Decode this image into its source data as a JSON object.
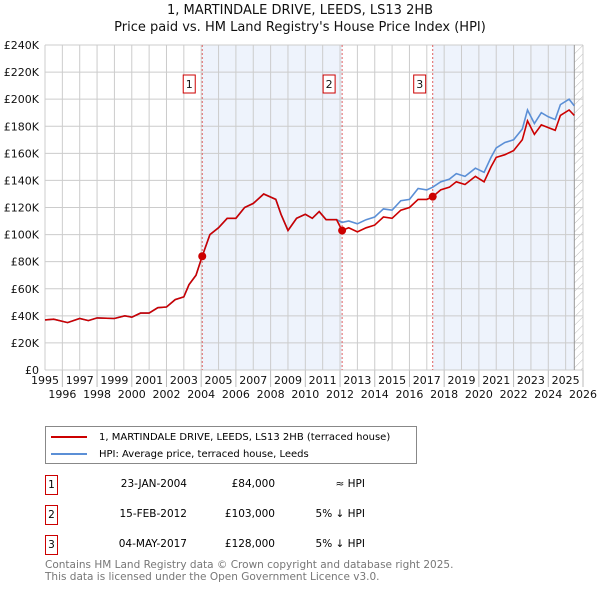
{
  "chart_data": {
    "type": "line",
    "title": "1, MARTINDALE DRIVE, LEEDS, LS13 2HB",
    "subtitle": "Price paid vs. HM Land Registry's House Price Index (HPI)",
    "xlim": [
      1995,
      2026
    ],
    "ylim": [
      0,
      240000
    ],
    "x_ticks": [
      "1995",
      "1996",
      "1997",
      "1998",
      "1999",
      "2000",
      "2001",
      "2002",
      "2003",
      "2004",
      "2005",
      "2006",
      "2007",
      "2008",
      "2009",
      "2010",
      "2011",
      "2012",
      "2013",
      "2014",
      "2015",
      "2016",
      "2017",
      "2018",
      "2019",
      "2020",
      "2021",
      "2022",
      "2023",
      "2024",
      "2025",
      "2026"
    ],
    "y_ticks": [
      "£0",
      "£20K",
      "£40K",
      "£60K",
      "£80K",
      "£100K",
      "£120K",
      "£140K",
      "£160K",
      "£180K",
      "£200K",
      "£220K",
      "£240K"
    ],
    "grid": true,
    "series": [
      {
        "name": "1, MARTINDALE DRIVE, LEEDS, LS13 2HB (terraced house)",
        "color": "#cc0000",
        "x": [
          1995,
          1995.5,
          1996.3,
          1997,
          1997.5,
          1998,
          1999,
          1999.6,
          2000,
          2000.5,
          2001,
          2001.5,
          2002,
          2002.5,
          2003,
          2003.3,
          2003.7,
          2004.06,
          2004.5,
          2005,
          2005.5,
          2006,
          2006.5,
          2007,
          2007.6,
          2008.3,
          2008.6,
          2009,
          2009.5,
          2010,
          2010.4,
          2010.8,
          2011.2,
          2011.8,
          2012.12,
          2012.5,
          2013,
          2013.5,
          2014,
          2014.5,
          2015,
          2015.5,
          2016,
          2016.5,
          2017,
          2017.34,
          2017.8,
          2018.3,
          2018.7,
          2019.2,
          2019.8,
          2020.3,
          2020.7,
          2021,
          2021.5,
          2022,
          2022.5,
          2022.8,
          2023.2,
          2023.6,
          2024,
          2024.4,
          2024.7,
          2025.2,
          2025.5
        ],
        "y": [
          37000,
          37500,
          35000,
          38000,
          36500,
          38500,
          38000,
          40000,
          39000,
          42000,
          42000,
          46000,
          46500,
          52000,
          54000,
          63000,
          70000,
          84000,
          100000,
          105000,
          112000,
          112000,
          120000,
          123000,
          130000,
          126000,
          115000,
          103000,
          112000,
          115000,
          112000,
          117000,
          111000,
          111000,
          103000,
          105000,
          102000,
          105000,
          107000,
          113000,
          112000,
          118000,
          120000,
          126000,
          126000,
          128000,
          133000,
          135000,
          139000,
          137000,
          143000,
          139000,
          150000,
          157000,
          159000,
          162000,
          170000,
          184000,
          174000,
          181000,
          179000,
          177000,
          188000,
          192000,
          188000
        ]
      },
      {
        "name": "HPI: Average price, terraced house, Leeds",
        "color": "#5b8fd6",
        "x": [
          1995,
          1995.5,
          1996.3,
          1997,
          1997.5,
          1998,
          1999,
          1999.6,
          2000,
          2000.5,
          2001,
          2001.5,
          2002,
          2002.5,
          2003,
          2003.3,
          2003.7,
          2004.06,
          2004.5,
          2005,
          2005.5,
          2006,
          2006.5,
          2007,
          2007.6,
          2008.3,
          2008.6,
          2009,
          2009.5,
          2010,
          2010.4,
          2010.8,
          2011.2,
          2011.8,
          2012.12,
          2012.5,
          2013,
          2013.5,
          2014,
          2014.5,
          2015,
          2015.5,
          2016,
          2016.5,
          2017,
          2017.34,
          2017.8,
          2018.3,
          2018.7,
          2019.2,
          2019.8,
          2020.3,
          2020.7,
          2021,
          2021.5,
          2022,
          2022.5,
          2022.8,
          2023.2,
          2023.6,
          2024,
          2024.4,
          2024.7,
          2025.2,
          2025.5
        ],
        "y": [
          37000,
          37500,
          35000,
          38000,
          36500,
          38500,
          38000,
          40000,
          39000,
          42000,
          42000,
          46000,
          46500,
          52000,
          54000,
          63000,
          70000,
          84000,
          100000,
          105000,
          112000,
          112000,
          120000,
          123000,
          130000,
          126000,
          115000,
          103000,
          112000,
          115000,
          112000,
          117000,
          111000,
          111000,
          109000,
          110000,
          108000,
          111000,
          113000,
          119000,
          118000,
          125000,
          126000,
          134000,
          133000,
          135000,
          139000,
          141000,
          145000,
          143000,
          149000,
          146000,
          157000,
          164000,
          168000,
          170000,
          178000,
          192000,
          182000,
          190000,
          187000,
          185000,
          196000,
          200000,
          195000
        ]
      }
    ],
    "sales": [
      {
        "label": "1",
        "x": 2004.06,
        "y": 84000,
        "date": "23-JAN-2004",
        "price": "£84,000",
        "hpi": "≈ HPI"
      },
      {
        "label": "2",
        "x": 2012.12,
        "y": 103000,
        "date": "15-FEB-2012",
        "price": "£103,000",
        "hpi": "5% ↓ HPI"
      },
      {
        "label": "3",
        "x": 2017.34,
        "y": 128000,
        "date": "04-MAY-2017",
        "price": "£128,000",
        "hpi": "5% ↓ HPI"
      }
    ],
    "shaded_ranges": [
      [
        2004.06,
        2012.12
      ],
      [
        2017.34,
        2025.5
      ]
    ],
    "hatched_from": 2025.5
  },
  "legend": {
    "red": "1, MARTINDALE DRIVE, LEEDS, LS13 2HB (terraced house)",
    "blue": "HPI: Average price, terraced house, Leeds"
  },
  "footer": {
    "line1": "Contains HM Land Registry data © Crown copyright and database right 2025.",
    "line2": "This data is licensed under the Open Government Licence v3.0."
  }
}
